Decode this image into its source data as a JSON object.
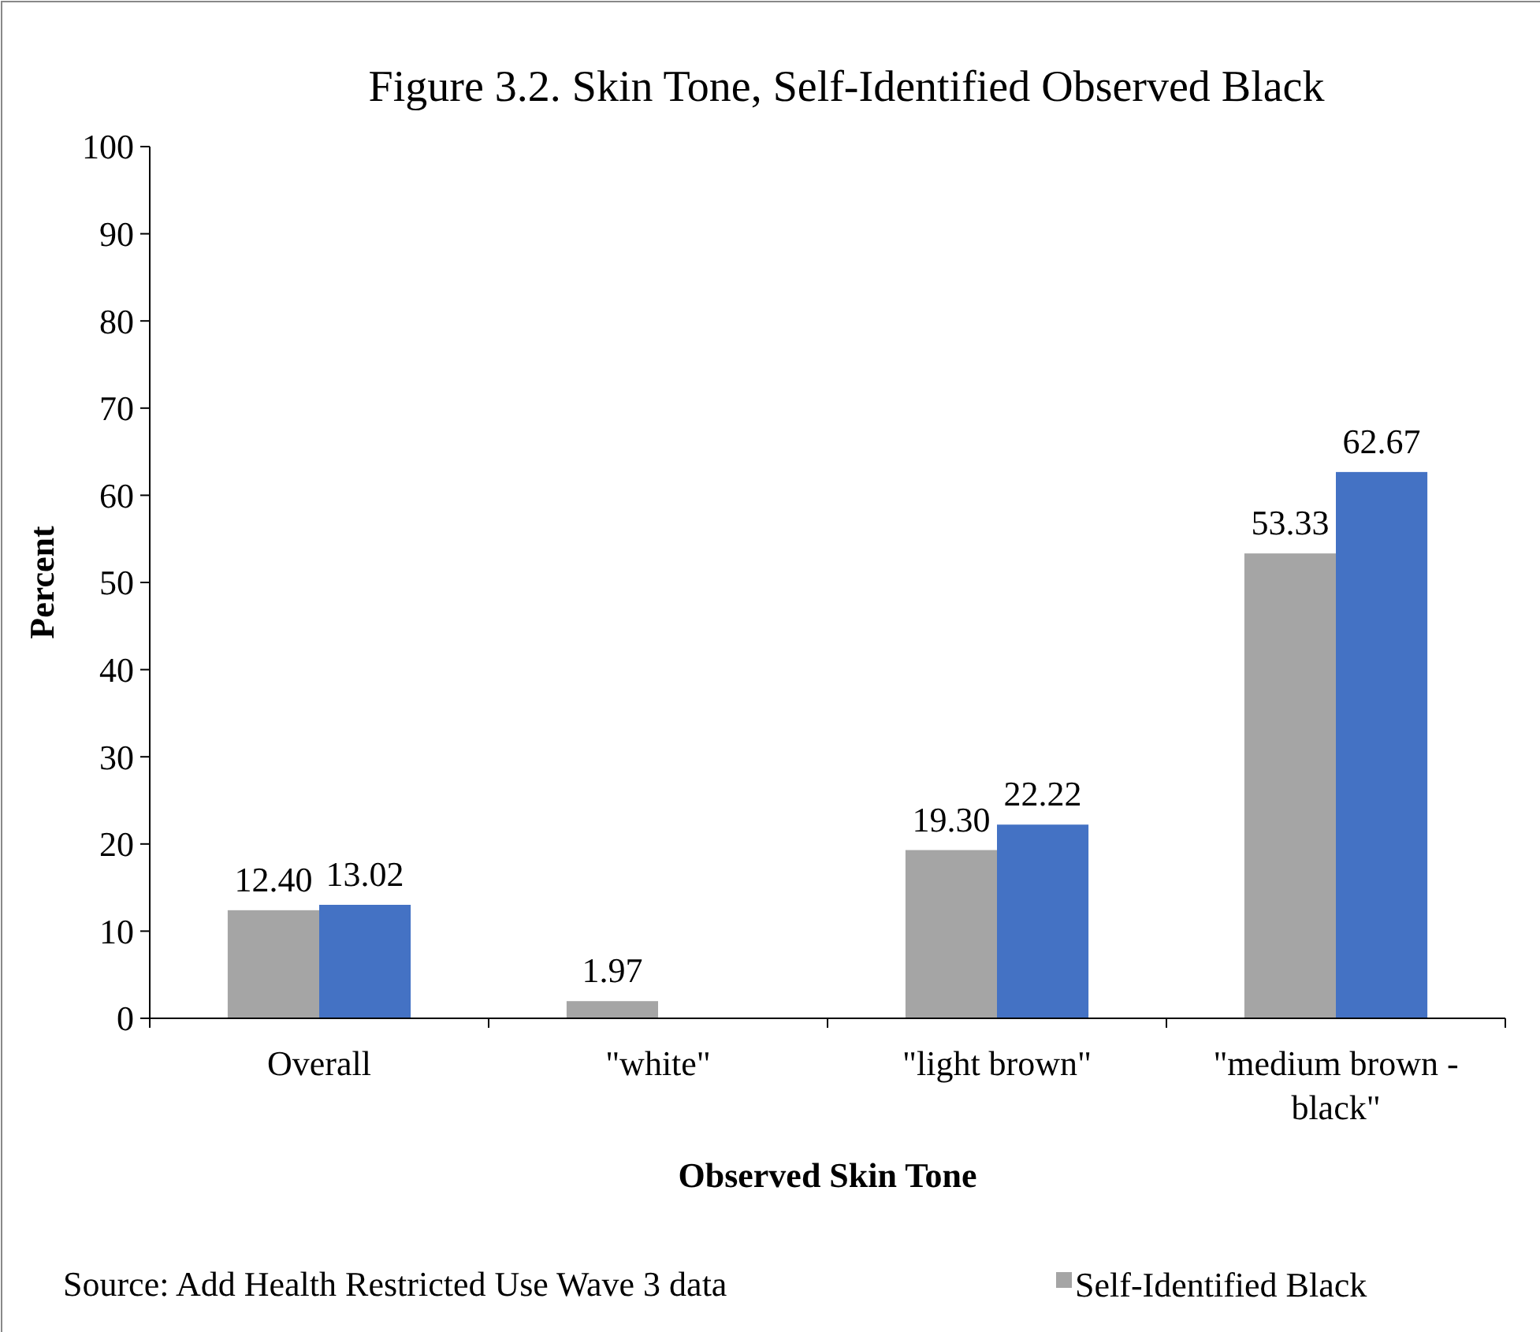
{
  "chart_data": {
    "type": "bar",
    "title": "Figure 3.2. Skin Tone, Self-Identified Observed Black",
    "xlabel": "Observed Skin Tone",
    "ylabel": "Percent",
    "categories": [
      "Overall",
      "\"white\"",
      "\"light brown\"",
      "\"medium brown - black\""
    ],
    "series": [
      {
        "name": "Self-Identified Black",
        "color": "#a5a5a5",
        "values": [
          12.4,
          1.97,
          19.3,
          53.33
        ],
        "value_labels": [
          "12.40",
          "1.97",
          "19.30",
          "53.33"
        ]
      },
      {
        "color": "#4472c4",
        "values": [
          13.02,
          null,
          22.22,
          62.67
        ],
        "value_labels": [
          "13.02",
          null,
          "22.22",
          "62.67"
        ]
      }
    ],
    "ylim": [
      0,
      100
    ],
    "yticks": [
      0,
      10,
      20,
      30,
      40,
      50,
      60,
      70,
      80,
      90,
      100
    ],
    "grid": false,
    "legend": "bottom right",
    "annotations": [
      "Source: Add Health Restricted Use Wave 3 data"
    ]
  }
}
